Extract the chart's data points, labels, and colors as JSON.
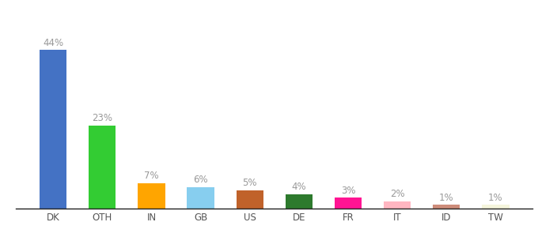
{
  "categories": [
    "DK",
    "OTH",
    "IN",
    "GB",
    "US",
    "DE",
    "FR",
    "IT",
    "ID",
    "TW"
  ],
  "values": [
    44,
    23,
    7,
    6,
    5,
    4,
    3,
    2,
    1,
    1
  ],
  "labels": [
    "44%",
    "23%",
    "7%",
    "6%",
    "5%",
    "4%",
    "3%",
    "2%",
    "1%",
    "1%"
  ],
  "colors": [
    "#4472C4",
    "#33CC33",
    "#FFA500",
    "#87CEEF",
    "#C0622A",
    "#2D7A2D",
    "#FF1493",
    "#FFB6C1",
    "#CD8C7A",
    "#F5F5DC"
  ],
  "ylim": [
    0,
    50
  ],
  "bg_color": "#ffffff",
  "label_color": "#999999",
  "label_fontsize": 8.5,
  "xtick_fontsize": 8.5,
  "bar_width": 0.55
}
